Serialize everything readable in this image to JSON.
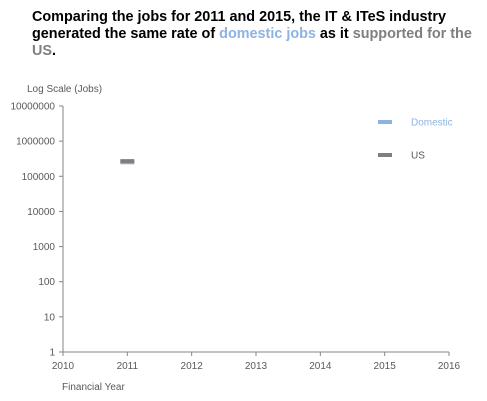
{
  "title": {
    "part1": "Comparing the  jobs for 2011 and 2015, the IT & ITeS industry generated the same rate of ",
    "highlight1": "domestic jobs",
    "part2": " as it ",
    "highlight2": "supported for the US",
    "part3": "."
  },
  "chart_data": {
    "type": "scatter",
    "marker": "dash",
    "ylabel": "Log Scale (Jobs)",
    "xlabel": "Financial Year",
    "yscale": "log",
    "ylim": [
      1,
      10000000
    ],
    "xlim": [
      2010,
      2016
    ],
    "yticks": [
      1,
      10,
      100,
      1000,
      10000,
      100000,
      1000000,
      10000000
    ],
    "ytick_labels": [
      "1",
      "10",
      "100",
      "1000",
      "10000",
      "100000",
      "1000000",
      "10000000"
    ],
    "xticks": [
      2010,
      2011,
      2012,
      2013,
      2014,
      2015,
      2016
    ],
    "xtick_labels": [
      "2010",
      "2011",
      "2012",
      "2013",
      "2014",
      "2015",
      "2016"
    ],
    "grid": false,
    "legend_position": "top-right",
    "series": [
      {
        "name": "Domestic",
        "color": "#8db3e2",
        "points": [
          {
            "x": 2011,
            "y": 250000
          }
        ]
      },
      {
        "name": "US",
        "color": "#7f7f7f",
        "points": [
          {
            "x": 2011,
            "y": 270000
          }
        ]
      }
    ]
  }
}
